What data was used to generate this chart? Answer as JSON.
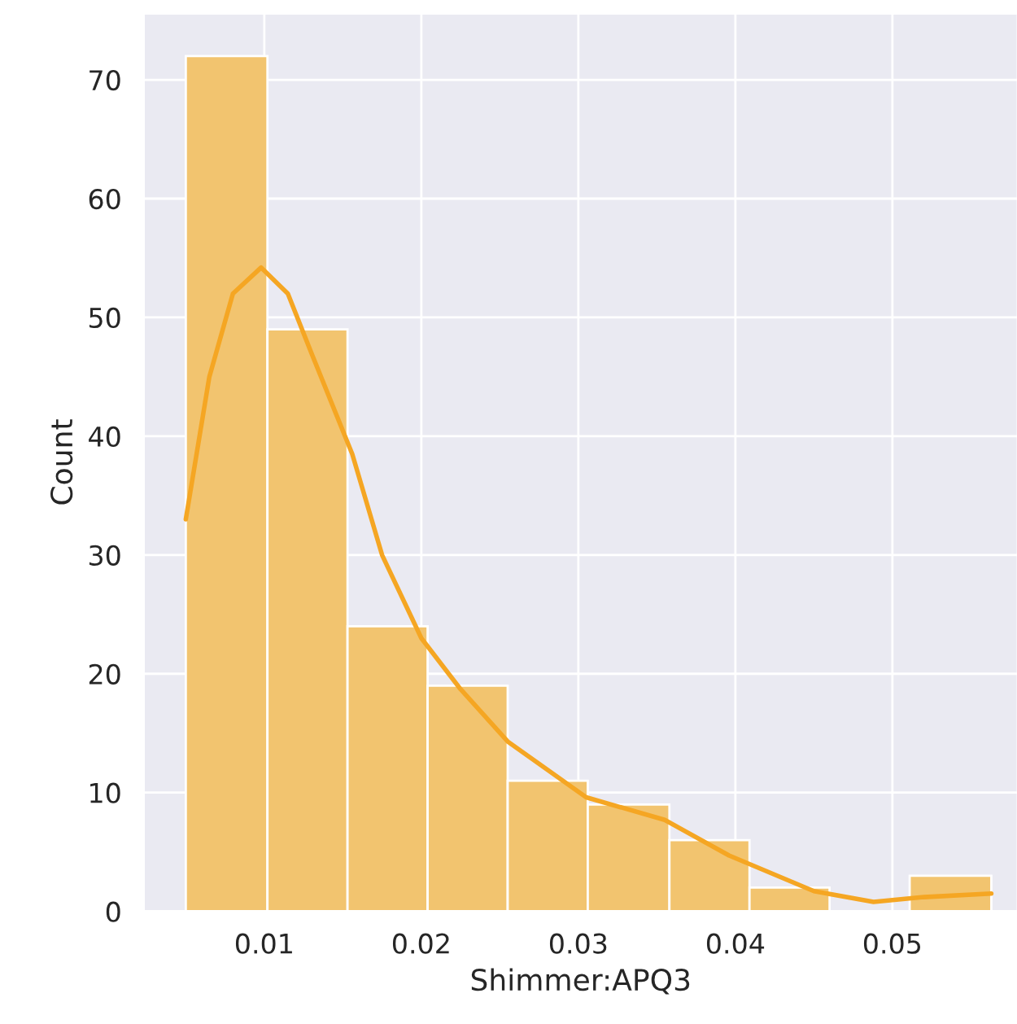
{
  "chart_data": {
    "type": "histogram",
    "xlabel": "Shimmer:APQ3",
    "ylabel": "Count",
    "xlim": [
      0.0023,
      0.058
    ],
    "xticks": [
      0.01,
      0.02,
      0.03,
      0.04,
      0.05
    ],
    "ylim": [
      0,
      75.6
    ],
    "yticks": [
      0,
      10,
      20,
      30,
      40,
      50,
      60,
      70
    ],
    "grid": true,
    "series": [
      {
        "color": "#f2c46f",
        "bins": [
          0.005,
          0.0102,
          0.0153,
          0.0204,
          0.0255,
          0.0306,
          0.0358,
          0.0409,
          0.046,
          0.0511,
          0.0563
        ],
        "values": [
          72,
          49,
          24,
          19,
          11,
          9,
          6,
          2,
          0,
          3
        ]
      },
      {
        "type": "line",
        "color": "#f5a623",
        "x": [
          0.005,
          0.0065,
          0.008,
          0.0098,
          0.0115,
          0.013,
          0.0156,
          0.0175,
          0.02,
          0.0225,
          0.0255,
          0.0305,
          0.0355,
          0.0396,
          0.045,
          0.0488,
          0.052,
          0.0563
        ],
        "values": [
          33,
          45,
          52,
          54.2,
          52,
          47,
          38.5,
          30,
          23,
          18.7,
          14.3,
          9.6,
          7.7,
          4.7,
          1.7,
          0.8,
          1.2,
          1.5
        ]
      }
    ]
  }
}
